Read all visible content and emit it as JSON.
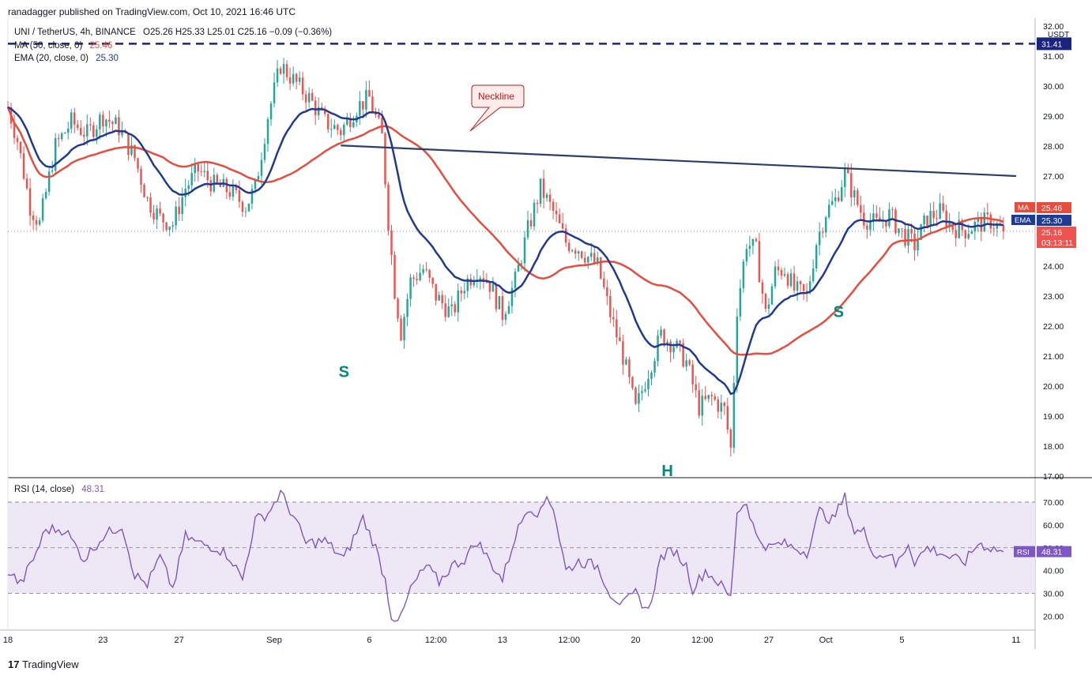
{
  "header": {
    "publisher": "ranadagger published on TradingView.com, Oct 10, 2021 16:46 UTC"
  },
  "legend": {
    "symbol": "UNI / TetherUS, 4h, BINANCE",
    "ohlc": "O25.26  H25.33  L25.01  C25.16  −0.09 (−0.36%)",
    "ma_label": "MA (50, close, 0)",
    "ma_value": "25.46",
    "ema_label": "EMA (20, close, 0)",
    "ema_value": "25.30",
    "rsi_label": "RSI (14, close)",
    "rsi_value": "48.31"
  },
  "branding": {
    "logo_text": "TradingView"
  },
  "colors": {
    "up": "#26a69a",
    "down": "#ef5350",
    "ma": "#e74c3c",
    "ema": "#1f3a93",
    "neckline": "#2b3f6c",
    "resistance": "#1a237e",
    "rsi": "#7e57c2",
    "rsi_band": "#ede7f6",
    "pattern_label": "#00897b"
  },
  "chart_data": {
    "type": "candlestick",
    "price_axis": {
      "unit": "USDT",
      "ticks": [
        "32.00",
        "31.00",
        "30.00",
        "29.00",
        "28.00",
        "27.00",
        "26.00",
        "25.00",
        "24.00",
        "23.00",
        "22.00",
        "21.00",
        "20.00",
        "19.00",
        "18.00",
        "17.00"
      ],
      "range": [
        17,
        32
      ]
    },
    "x_axis": {
      "ticks": [
        {
          "label": "18",
          "t": 0
        },
        {
          "label": "23",
          "t": 30
        },
        {
          "label": "27",
          "t": 54
        },
        {
          "label": "Sep",
          "t": 84
        },
        {
          "label": "6",
          "t": 114
        },
        {
          "label": "12:00",
          "t": 135
        },
        {
          "label": "13",
          "t": 156
        },
        {
          "label": "12:00",
          "t": 177
        },
        {
          "label": "20",
          "t": 198
        },
        {
          "label": "12:00",
          "t": 219
        },
        {
          "label": "27",
          "t": 240
        },
        {
          "label": "Oct",
          "t": 258
        },
        {
          "label": "5",
          "t": 282
        },
        {
          "label": "11",
          "t": 318
        }
      ]
    },
    "candles_count": 315,
    "price_anchors": [
      [
        0,
        29.3
      ],
      [
        3,
        28.2
      ],
      [
        7,
        26.0
      ],
      [
        10,
        25.4
      ],
      [
        15,
        28.0
      ],
      [
        20,
        28.8
      ],
      [
        25,
        28.4
      ],
      [
        30,
        29.0
      ],
      [
        35,
        28.6
      ],
      [
        40,
        27.6
      ],
      [
        44,
        26.2
      ],
      [
        48,
        25.6
      ],
      [
        52,
        25.4
      ],
      [
        56,
        26.6
      ],
      [
        60,
        27.2
      ],
      [
        65,
        26.7
      ],
      [
        70,
        26.5
      ],
      [
        75,
        26.0
      ],
      [
        78,
        26.6
      ],
      [
        82,
        29.0
      ],
      [
        86,
        30.7
      ],
      [
        90,
        30.2
      ],
      [
        95,
        29.6
      ],
      [
        100,
        28.8
      ],
      [
        105,
        28.5
      ],
      [
        110,
        29.3
      ],
      [
        114,
        29.6
      ],
      [
        118,
        28.3
      ],
      [
        120,
        25.5
      ],
      [
        122,
        23.2
      ],
      [
        124,
        21.8
      ],
      [
        127,
        23.5
      ],
      [
        131,
        23.9
      ],
      [
        135,
        23.0
      ],
      [
        140,
        22.4
      ],
      [
        144,
        23.4
      ],
      [
        148,
        23.9
      ],
      [
        152,
        23.4
      ],
      [
        156,
        22.4
      ],
      [
        160,
        23.5
      ],
      [
        164,
        25.2
      ],
      [
        168,
        26.6
      ],
      [
        172,
        25.8
      ],
      [
        176,
        24.8
      ],
      [
        180,
        24.6
      ],
      [
        186,
        24.0
      ],
      [
        190,
        22.4
      ],
      [
        194,
        21.0
      ],
      [
        198,
        19.2
      ],
      [
        202,
        20.5
      ],
      [
        206,
        21.7
      ],
      [
        210,
        21.4
      ],
      [
        214,
        20.8
      ],
      [
        218,
        19.3
      ],
      [
        222,
        19.6
      ],
      [
        226,
        19.2
      ],
      [
        228,
        17.9
      ],
      [
        230,
        22.6
      ],
      [
        233,
        24.8
      ],
      [
        236,
        24.5
      ],
      [
        239,
        22.4
      ],
      [
        242,
        23.8
      ],
      [
        245,
        23.9
      ],
      [
        248,
        23.2
      ],
      [
        252,
        23.0
      ],
      [
        255,
        24.8
      ],
      [
        258,
        25.8
      ],
      [
        261,
        26.2
      ],
      [
        264,
        27.1
      ],
      [
        267,
        26.3
      ],
      [
        270,
        25.6
      ],
      [
        274,
        25.4
      ],
      [
        278,
        25.7
      ],
      [
        282,
        25.1
      ],
      [
        286,
        24.7
      ],
      [
        290,
        25.6
      ],
      [
        294,
        25.8
      ],
      [
        298,
        25.3
      ],
      [
        302,
        25.2
      ],
      [
        306,
        25.4
      ],
      [
        310,
        25.5
      ],
      [
        314,
        25.16
      ]
    ],
    "series": [
      {
        "name": "MA (50, close, 0)",
        "last_value": 25.46
      },
      {
        "name": "EMA (20, close, 0)",
        "last_value": 25.3
      }
    ],
    "last_price": 25.16,
    "countdown": "03:13:11",
    "last_price_line": true,
    "horizontal_resistance": {
      "value": 31.41,
      "label": "31.41",
      "style": "dashed"
    },
    "neckline": {
      "label": "Neckline",
      "from": {
        "t": 105,
        "y": 28.02
      },
      "to": {
        "t": 318,
        "y": 27.0
      }
    },
    "annotations": [
      {
        "text": "S",
        "t": 106,
        "y": 20.3
      },
      {
        "text": "H",
        "t": 208,
        "y": 17.0
      },
      {
        "text": "S",
        "t": 262,
        "y": 22.3
      },
      {
        "text": "Neckline",
        "callout": true
      }
    ],
    "price_tags": [
      {
        "label": "MA",
        "value": "25.46"
      },
      {
        "label": "EMA",
        "value": "25.30"
      },
      {
        "label": "",
        "value": "25.16"
      }
    ],
    "rsi": {
      "name": "RSI (14, close)",
      "last_value": 48.31,
      "range": [
        15,
        80
      ],
      "ticks": [
        "70.00",
        "60.00",
        "50.00",
        "40.00",
        "30.00",
        "20.00"
      ],
      "levels": [
        70,
        50,
        30
      ],
      "anchors": [
        [
          0,
          40
        ],
        [
          4,
          34
        ],
        [
          8,
          45
        ],
        [
          12,
          58
        ],
        [
          18,
          58
        ],
        [
          24,
          45
        ],
        [
          30,
          55
        ],
        [
          36,
          60
        ],
        [
          40,
          38
        ],
        [
          44,
          34
        ],
        [
          48,
          46
        ],
        [
          52,
          32
        ],
        [
          56,
          55
        ],
        [
          60,
          52
        ],
        [
          66,
          50
        ],
        [
          70,
          46
        ],
        [
          74,
          36
        ],
        [
          78,
          62
        ],
        [
          82,
          65
        ],
        [
          86,
          74
        ],
        [
          90,
          64
        ],
        [
          94,
          52
        ],
        [
          100,
          53
        ],
        [
          106,
          45
        ],
        [
          112,
          63
        ],
        [
          116,
          50
        ],
        [
          119,
          36
        ],
        [
          121,
          20
        ],
        [
          124,
          19
        ],
        [
          127,
          32
        ],
        [
          132,
          42
        ],
        [
          136,
          35
        ],
        [
          140,
          42
        ],
        [
          144,
          45
        ],
        [
          148,
          53
        ],
        [
          152,
          44
        ],
        [
          156,
          36
        ],
        [
          160,
          55
        ],
        [
          164,
          68
        ],
        [
          168,
          65
        ],
        [
          170,
          73
        ],
        [
          172,
          68
        ],
        [
          176,
          40
        ],
        [
          180,
          44
        ],
        [
          186,
          42
        ],
        [
          190,
          30
        ],
        [
          194,
          25
        ],
        [
          198,
          30
        ],
        [
          202,
          22
        ],
        [
          206,
          46
        ],
        [
          210,
          49
        ],
        [
          214,
          42
        ],
        [
          216,
          32
        ],
        [
          220,
          40
        ],
        [
          224,
          35
        ],
        [
          228,
          28
        ],
        [
          230,
          66
        ],
        [
          233,
          70
        ],
        [
          236,
          55
        ],
        [
          240,
          50
        ],
        [
          244,
          52
        ],
        [
          248,
          50
        ],
        [
          252,
          48
        ],
        [
          256,
          66
        ],
        [
          260,
          62
        ],
        [
          264,
          72
        ],
        [
          267,
          57
        ],
        [
          270,
          57
        ],
        [
          274,
          46
        ],
        [
          278,
          48
        ],
        [
          280,
          42
        ],
        [
          284,
          52
        ],
        [
          286,
          44
        ],
        [
          290,
          50
        ],
        [
          294,
          48
        ],
        [
          298,
          45
        ],
        [
          302,
          44
        ],
        [
          306,
          52
        ],
        [
          310,
          50
        ],
        [
          314,
          48.3
        ]
      ]
    }
  }
}
